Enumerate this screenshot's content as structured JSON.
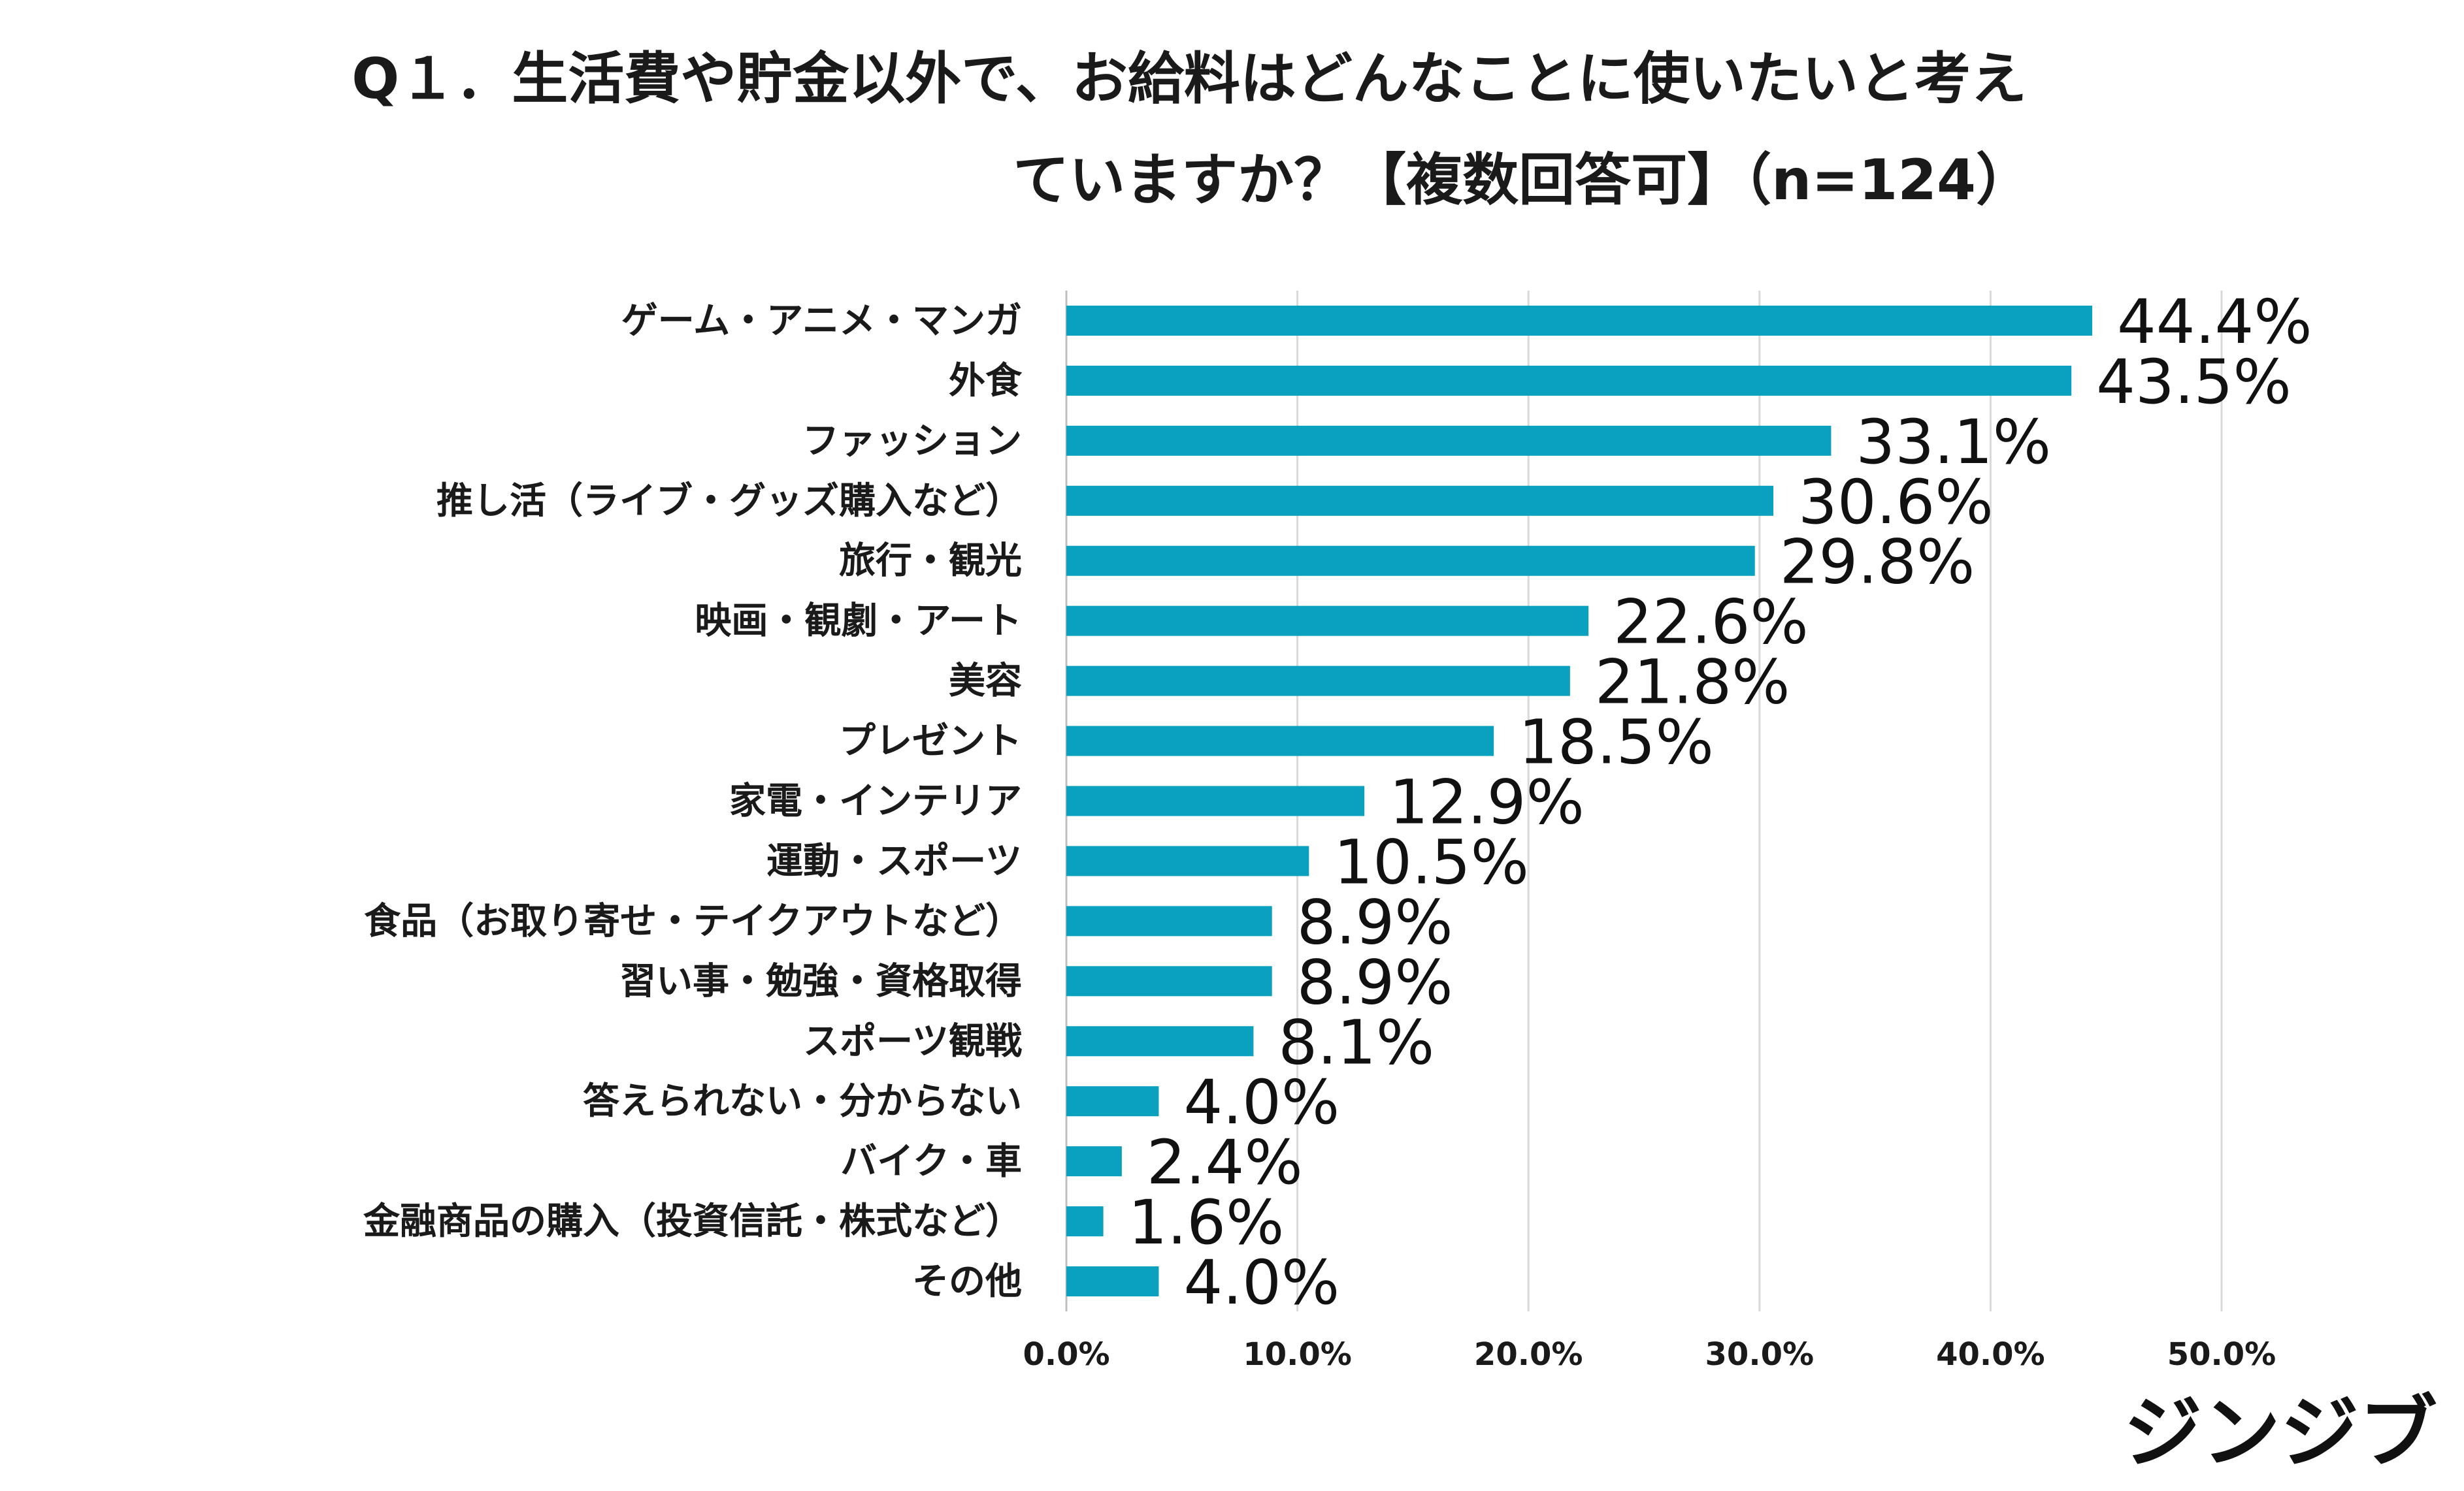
{
  "chart_data": {
    "type": "bar",
    "orientation": "horizontal",
    "title_lines": [
      "Q１．生活費や貯金以外で、お給料はどんなことに使いたいと考え",
      "ていますか？【複数回答可】（n=124）"
    ],
    "categories": [
      "ゲーム・アニメ・マンガ",
      "外食",
      "ファッション",
      "推し活（ライブ・グッズ購入など）",
      "旅行・観光",
      "映画・観劇・アート",
      "美容",
      "プレゼント",
      "家電・インテリア",
      "運動・スポーツ",
      "食品（お取り寄せ・テイクアウトなど）",
      "習い事・勉強・資格取得",
      "スポーツ観戦",
      "答えられない・分からない",
      "バイク・車",
      "金融商品の購入（投資信託・株式など）",
      "その他"
    ],
    "values": [
      44.4,
      43.5,
      33.1,
      30.6,
      29.8,
      22.6,
      21.8,
      18.5,
      12.9,
      10.5,
      8.9,
      8.9,
      8.1,
      4.0,
      2.4,
      1.6,
      4.0
    ],
    "value_labels": [
      "44.4%",
      "43.5%",
      "33.1%",
      "30.6%",
      "29.8%",
      "22.6%",
      "21.8%",
      "18.5%",
      "12.9%",
      "10.5%",
      "8.9%",
      "8.9%",
      "8.1%",
      "4.0%",
      "2.4%",
      "1.6%",
      "4.0%"
    ],
    "xlim": [
      0,
      50
    ],
    "xticks": [
      0,
      10,
      20,
      30,
      40,
      50
    ],
    "xtick_labels": [
      "0.0%",
      "10.0%",
      "20.0%",
      "30.0%",
      "40.0%",
      "50.0%"
    ],
    "xlabel": "",
    "ylabel": "",
    "grid": "vertical",
    "bar_color": "#0aa1bf"
  },
  "brand": {
    "name": "ジンジブ"
  }
}
